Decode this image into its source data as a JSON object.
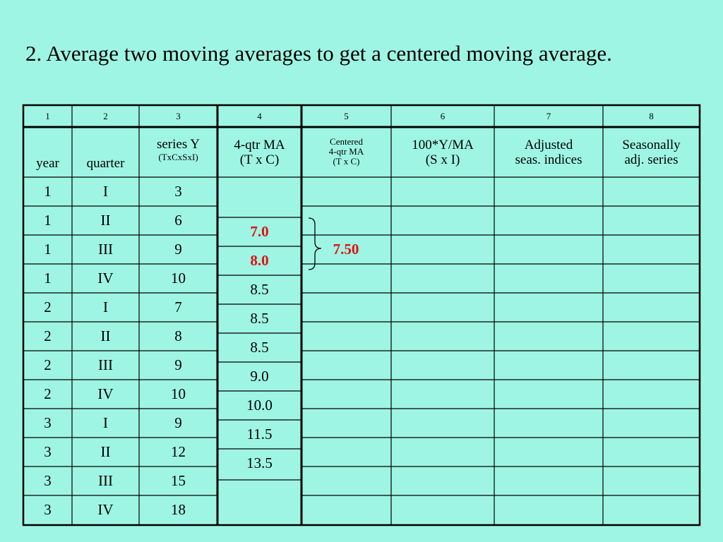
{
  "heading": "2.  Average two moving averages to get a centered moving average.",
  "column_numbers": [
    "1",
    "2",
    "3",
    "4",
    "5",
    "6",
    "7",
    "8"
  ],
  "headers": {
    "year": "year",
    "quarter": "quarter",
    "series_y": "series Y",
    "series_y_sub": "(TxCxSxI)",
    "ma4_line1": "4-qtr MA",
    "ma4_line2": "(T x C)",
    "centered_line1": "Centered",
    "centered_line2": "4-qtr  MA",
    "centered_line3": "(T x C)",
    "ratio_line1": "100*Y/MA",
    "ratio_line2": "(S x I)",
    "adjusted_line1": "Adjusted",
    "adjusted_line2": "seas. indices",
    "seasonal_line1": "Seasonally",
    "seasonal_line2": "adj. series"
  },
  "rows": [
    {
      "year": "1",
      "quarter": "I",
      "y": "3"
    },
    {
      "year": "1",
      "quarter": "II",
      "y": "6"
    },
    {
      "year": "1",
      "quarter": "III",
      "y": "9"
    },
    {
      "year": "1",
      "quarter": "IV",
      "y": "10"
    },
    {
      "year": "2",
      "quarter": "I",
      "y": "7"
    },
    {
      "year": "2",
      "quarter": "II",
      "y": "8"
    },
    {
      "year": "2",
      "quarter": "III",
      "y": "9"
    },
    {
      "year": "2",
      "quarter": "IV",
      "y": "10"
    },
    {
      "year": "3",
      "quarter": "I",
      "y": "9"
    },
    {
      "year": "3",
      "quarter": "II",
      "y": "12"
    },
    {
      "year": "3",
      "quarter": "III",
      "y": "15"
    },
    {
      "year": "3",
      "quarter": "IV",
      "y": "18"
    }
  ],
  "moving_averages": [
    "7.0",
    "8.0",
    "8.5",
    "8.5",
    "8.5",
    "9.0",
    "10.0",
    "11.5",
    "13.5"
  ],
  "centered_value": "7.50",
  "highlight_color": "#e01010"
}
